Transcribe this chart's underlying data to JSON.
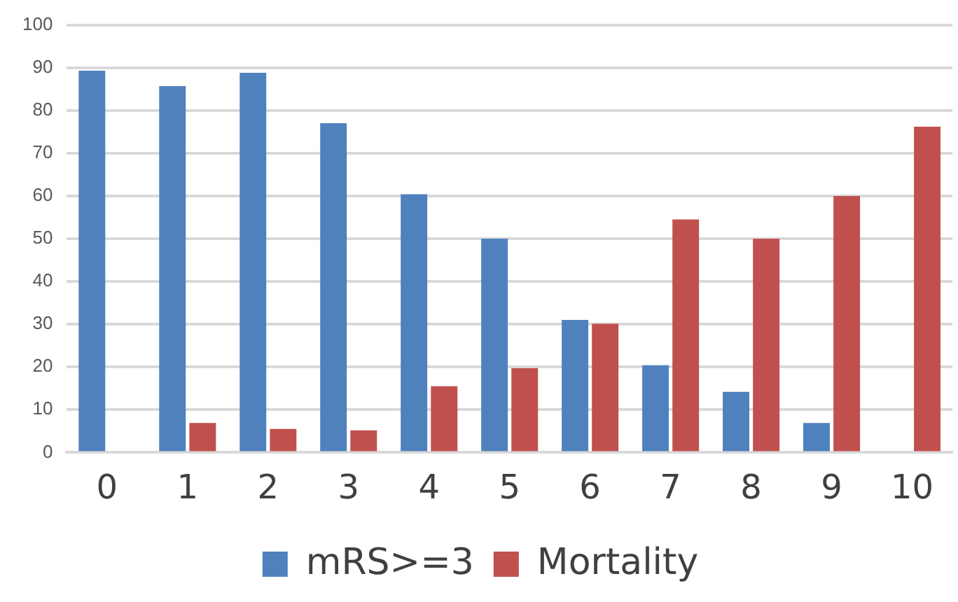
{
  "chart_data": {
    "type": "bar",
    "categories": [
      "0",
      "1",
      "2",
      "3",
      "4",
      "5",
      "6",
      "7",
      "8",
      "9",
      "10"
    ],
    "series": [
      {
        "name": "mRS>=3",
        "color": "#4f81bd",
        "values": [
          89.3,
          85.7,
          88.8,
          77,
          60.4,
          50,
          31,
          20.4,
          14.2,
          6.9,
          0
        ]
      },
      {
        "name": "Mortality",
        "color": "#c0504d",
        "values": [
          0,
          6.9,
          5.5,
          5.2,
          15.5,
          19.7,
          30.1,
          54.5,
          50,
          60,
          76.2
        ]
      }
    ],
    "ylim": [
      0,
      100
    ],
    "yticks": [
      0,
      10,
      20,
      30,
      40,
      50,
      60,
      70,
      80,
      90,
      100
    ],
    "grid": "y",
    "legend": "bottom"
  }
}
